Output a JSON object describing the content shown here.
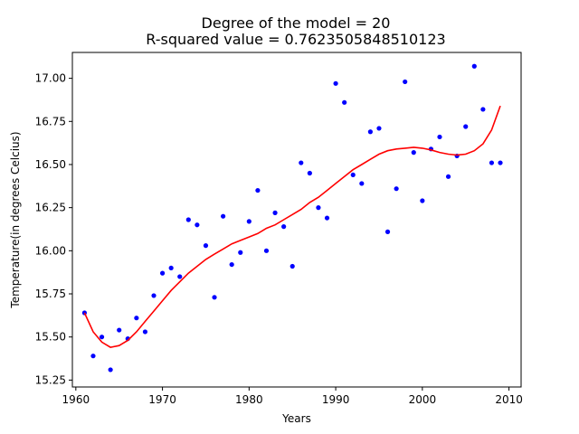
{
  "chart_data": {
    "type": "scatter",
    "title_lines": [
      "Degree of the model = 20",
      "R-squared value = 0.7623505848510123"
    ],
    "xlabel": "Years",
    "ylabel": "Temperature(in degrees Celcius)",
    "xlim": [
      1959.6,
      2011.4
    ],
    "ylim": [
      15.21,
      17.15
    ],
    "xticks": [
      1960,
      1970,
      1980,
      1990,
      2000,
      2010
    ],
    "xtick_labels": [
      "1960",
      "1970",
      "1980",
      "1990",
      "2000",
      "2010"
    ],
    "yticks": [
      15.25,
      15.5,
      15.75,
      16.0,
      16.25,
      16.5,
      16.75,
      17.0
    ],
    "ytick_labels": [
      "15.25",
      "15.50",
      "15.75",
      "16.00",
      "16.25",
      "16.50",
      "16.75",
      "17.00"
    ],
    "grid": false,
    "series": [
      {
        "kind": "points",
        "color": "#0000ff",
        "x": [
          1961,
          1962,
          1963,
          1964,
          1965,
          1966,
          1967,
          1968,
          1969,
          1970,
          1971,
          1972,
          1973,
          1974,
          1975,
          1976,
          1977,
          1978,
          1979,
          1980,
          1981,
          1982,
          1983,
          1984,
          1985,
          1986,
          1987,
          1988,
          1989,
          1990,
          1991,
          1992,
          1993,
          1994,
          1995,
          1996,
          1997,
          1998,
          1999,
          2000,
          2001,
          2002,
          2003,
          2004,
          2005,
          2006,
          2007,
          2008,
          2009
        ],
        "y": [
          15.64,
          15.39,
          15.5,
          15.31,
          15.54,
          15.49,
          15.61,
          15.53,
          15.74,
          15.87,
          15.9,
          15.85,
          16.18,
          16.15,
          16.03,
          15.73,
          16.2,
          15.92,
          15.99,
          16.17,
          16.35,
          16.0,
          16.22,
          16.14,
          15.91,
          16.51,
          16.45,
          16.25,
          16.19,
          16.97,
          16.86,
          16.44,
          16.39,
          16.69,
          16.71,
          16.11,
          16.36,
          16.98,
          16.57,
          16.29,
          16.59,
          16.66,
          16.43,
          16.55,
          16.72,
          17.07,
          16.82,
          16.51,
          16.51
        ]
      },
      {
        "kind": "line",
        "color": "#ff0000",
        "x": [
          1961,
          1962,
          1963,
          1964,
          1965,
          1966,
          1967,
          1968,
          1969,
          1970,
          1971,
          1972,
          1973,
          1974,
          1975,
          1976,
          1977,
          1978,
          1979,
          1980,
          1981,
          1982,
          1983,
          1984,
          1985,
          1986,
          1987,
          1988,
          1989,
          1990,
          1991,
          1992,
          1993,
          1994,
          1995,
          1996,
          1997,
          1998,
          1999,
          2000,
          2001,
          2002,
          2003,
          2004,
          2005,
          2006,
          2007,
          2008,
          2009
        ],
        "y": [
          15.64,
          15.53,
          15.47,
          15.44,
          15.45,
          15.48,
          15.53,
          15.59,
          15.65,
          15.71,
          15.77,
          15.82,
          15.87,
          15.91,
          15.95,
          15.98,
          16.01,
          16.04,
          16.06,
          16.08,
          16.1,
          16.13,
          16.15,
          16.18,
          16.21,
          16.24,
          16.28,
          16.31,
          16.35,
          16.39,
          16.43,
          16.47,
          16.5,
          16.53,
          16.56,
          16.58,
          16.59,
          16.595,
          16.6,
          16.595,
          16.585,
          16.57,
          16.56,
          16.555,
          16.56,
          16.58,
          16.62,
          16.7,
          16.84
        ]
      }
    ]
  }
}
